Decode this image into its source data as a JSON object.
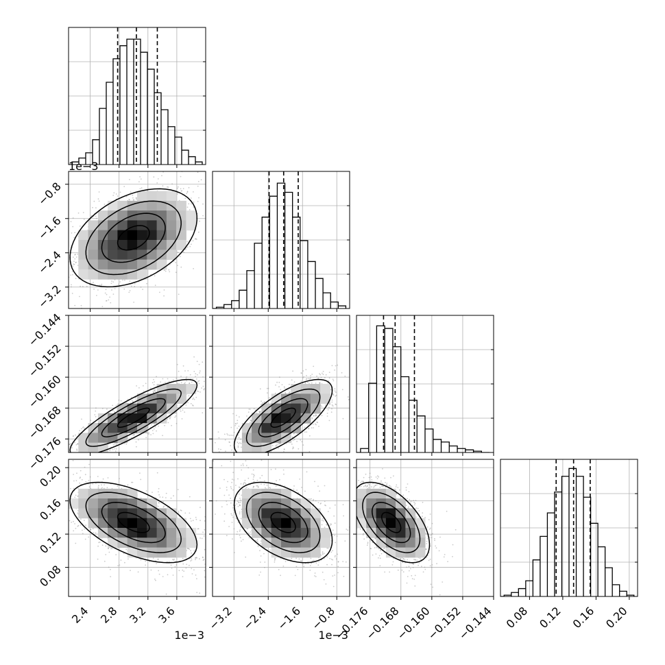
{
  "chart_data": {
    "type": "corner",
    "params": [
      {
        "range": [
          2.1,
          4.0
        ],
        "scale_label": "1e−3",
        "ticks": [
          2.4,
          2.8,
          3.2,
          3.6
        ],
        "tick_labels": [
          "2.4",
          "2.8",
          "3.2",
          "3.6"
        ],
        "quantiles": [
          2.78,
          3.04,
          3.33
        ]
      },
      {
        "range": [
          -3.7,
          -0.5
        ],
        "scale_label": "1e−3",
        "ticks": [
          -3.2,
          -2.4,
          -1.6,
          -0.8
        ],
        "tick_labels": [
          "−3.2",
          "−2.4",
          "−1.6",
          "−0.8"
        ],
        "quantiles": [
          -2.38,
          -2.04,
          -1.7
        ]
      },
      {
        "range": [
          -0.1795,
          -0.144
        ],
        "scale_label": "",
        "ticks": [
          -0.176,
          -0.168,
          -0.16,
          -0.152,
          -0.144
        ],
        "tick_labels": [
          "−0.176",
          "−0.168",
          "−0.160",
          "−0.152",
          "−0.144"
        ],
        "quantiles": [
          -0.1725,
          -0.1695,
          -0.1645
        ]
      },
      {
        "range": [
          0.045,
          0.21
        ],
        "scale_label": "",
        "ticks": [
          0.08,
          0.12,
          0.16,
          0.2
        ],
        "tick_labels": [
          "0.08",
          "0.12",
          "0.16",
          "0.20"
        ],
        "quantiles": [
          0.112,
          0.133,
          0.153
        ]
      }
    ],
    "histograms": [
      [
        0.02,
        0.05,
        0.09,
        0.19,
        0.43,
        0.63,
        0.81,
        0.91,
        0.96,
        0.96,
        0.86,
        0.73,
        0.55,
        0.42,
        0.29,
        0.21,
        0.11,
        0.06,
        0.02
      ],
      [
        0.01,
        0.03,
        0.06,
        0.14,
        0.29,
        0.5,
        0.7,
        0.86,
        0.96,
        0.89,
        0.7,
        0.52,
        0.36,
        0.23,
        0.12,
        0.05,
        0.02
      ],
      [
        0.03,
        0.53,
        0.97,
        0.95,
        0.81,
        0.58,
        0.4,
        0.28,
        0.18,
        0.1,
        0.08,
        0.05,
        0.03,
        0.02,
        0.01,
        0.0
      ],
      [
        0.01,
        0.03,
        0.06,
        0.12,
        0.28,
        0.46,
        0.64,
        0.8,
        0.92,
        0.98,
        0.92,
        0.76,
        0.56,
        0.38,
        0.22,
        0.09,
        0.04,
        0.01
      ]
    ],
    "hist_ylim": [
      0,
      1.05
    ],
    "correlations": [
      [
        1,
        0.4,
        0.85,
        -0.55
      ],
      [
        0.4,
        1,
        0.72,
        -0.45
      ],
      [
        0.85,
        0.72,
        1,
        -0.55
      ],
      [
        -0.55,
        -0.45,
        -0.55,
        1
      ]
    ],
    "sigmas": [
      0.0004,
      0.00052,
      0.0045,
      0.022
    ],
    "centers": [
      3.0,
      -2.05,
      -0.1705,
      0.134
    ],
    "contour_levels": [
      0.5,
      1.0,
      1.5,
      2.0
    ],
    "grid": true,
    "quantile_line_style": "dashed"
  }
}
